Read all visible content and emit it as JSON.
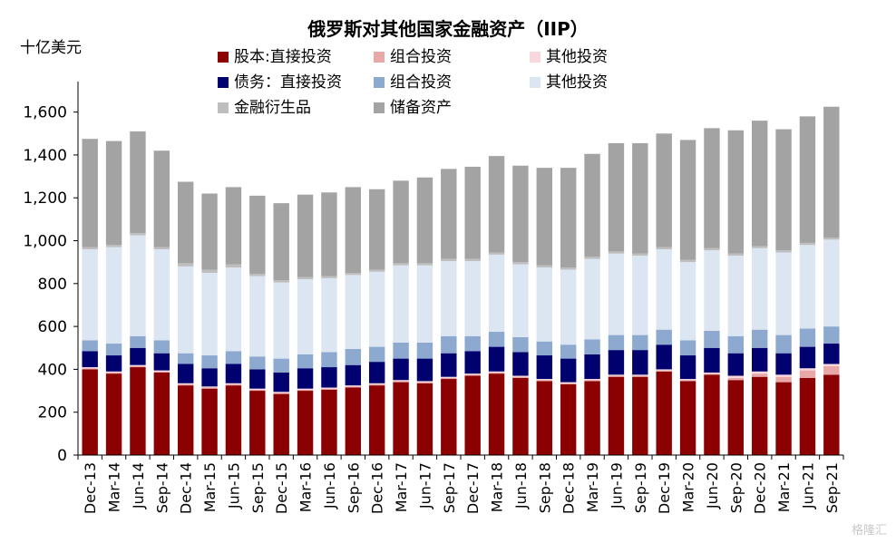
{
  "title": "俄罗斯对其他国家金融资产（IIP）",
  "unit": "十亿美元",
  "watermark": "格隆汇",
  "chart_data": {
    "type": "bar",
    "stacked": true,
    "title": "俄罗斯对其他国家金融资产（IIP）",
    "ylabel": "十亿美元",
    "ylim": [
      0,
      1700
    ],
    "yticks": [
      0,
      200,
      400,
      600,
      800,
      1000,
      1200,
      1400,
      1600
    ],
    "ytick_labels": [
      "0",
      "200",
      "400",
      "600",
      "800",
      "1,000",
      "1,200",
      "1,400",
      "1,600"
    ],
    "grid": false,
    "legend_position": "top",
    "categories": [
      "Dec-13",
      "Mar-14",
      "Jun-14",
      "Sep-14",
      "Dec-14",
      "Mar-15",
      "Jun-15",
      "Sep-15",
      "Dec-15",
      "Mar-16",
      "Jun-16",
      "Sep-16",
      "Dec-16",
      "Mar-17",
      "Jun-17",
      "Sep-17",
      "Dec-17",
      "Mar-18",
      "Jun-18",
      "Sep-18",
      "Dec-18",
      "Mar-19",
      "Jun-19",
      "Sep-19",
      "Dec-19",
      "Mar-20",
      "Jun-20",
      "Sep-20",
      "Dec-20",
      "Mar-21",
      "Jun-21",
      "Sep-21"
    ],
    "series": [
      {
        "name": "股本:直接投资",
        "color": "#8B0000",
        "values": [
          400,
          380,
          410,
          385,
          325,
          310,
          325,
          300,
          285,
          300,
          305,
          315,
          325,
          340,
          335,
          355,
          370,
          380,
          360,
          345,
          330,
          345,
          365,
          365,
          390,
          345,
          375,
          350,
          365,
          340,
          360,
          375
        ]
      },
      {
        "name": "组合投资",
        "color": "#E8A8A8",
        "values": [
          5,
          5,
          5,
          5,
          5,
          5,
          5,
          5,
          5,
          5,
          5,
          5,
          5,
          5,
          5,
          5,
          5,
          5,
          5,
          5,
          5,
          5,
          5,
          5,
          5,
          5,
          5,
          10,
          15,
          25,
          35,
          40
        ]
      },
      {
        "name": "其他投资",
        "color": "#F8D8DC",
        "values": [
          5,
          5,
          5,
          5,
          5,
          5,
          5,
          5,
          5,
          5,
          5,
          5,
          5,
          5,
          5,
          5,
          5,
          5,
          5,
          5,
          5,
          5,
          5,
          5,
          5,
          5,
          5,
          10,
          10,
          10,
          10,
          10
        ]
      },
      {
        "name": "债务：直接投资",
        "color": "#00006E",
        "values": [
          75,
          75,
          80,
          80,
          90,
          85,
          90,
          90,
          90,
          95,
          95,
          95,
          100,
          100,
          105,
          110,
          105,
          115,
          110,
          110,
          110,
          115,
          115,
          115,
          115,
          110,
          115,
          105,
          110,
          100,
          100,
          95
        ]
      },
      {
        "name": "组合投资",
        "color": "#8EA9D0",
        "values": [
          50,
          55,
          55,
          60,
          50,
          60,
          60,
          60,
          65,
          65,
          70,
          75,
          70,
          75,
          75,
          80,
          70,
          70,
          70,
          65,
          65,
          70,
          70,
          70,
          70,
          70,
          80,
          80,
          85,
          85,
          85,
          80
        ]
      },
      {
        "name": "其他投资",
        "color": "#DCE6F2",
        "values": [
          425,
          450,
          470,
          425,
          405,
          385,
          390,
          375,
          355,
          350,
          345,
          345,
          350,
          360,
          360,
          350,
          350,
          360,
          340,
          345,
          350,
          375,
          380,
          370,
          375,
          365,
          375,
          375,
          380,
          385,
          390,
          405
        ]
      },
      {
        "name": "金融衍生品",
        "color": "#BEBEBE",
        "values": [
          10,
          10,
          10,
          10,
          15,
          15,
          15,
          10,
          10,
          10,
          10,
          10,
          10,
          10,
          10,
          10,
          10,
          10,
          10,
          10,
          10,
          10,
          10,
          10,
          10,
          10,
          10,
          10,
          10,
          10,
          10,
          10
        ]
      },
      {
        "name": "储备资产",
        "color": "#A3A3A3",
        "values": [
          505,
          485,
          475,
          450,
          380,
          355,
          360,
          365,
          360,
          385,
          390,
          400,
          375,
          385,
          400,
          420,
          430,
          450,
          450,
          455,
          465,
          480,
          505,
          515,
          530,
          560,
          560,
          575,
          585,
          565,
          590,
          610
        ]
      }
    ]
  }
}
